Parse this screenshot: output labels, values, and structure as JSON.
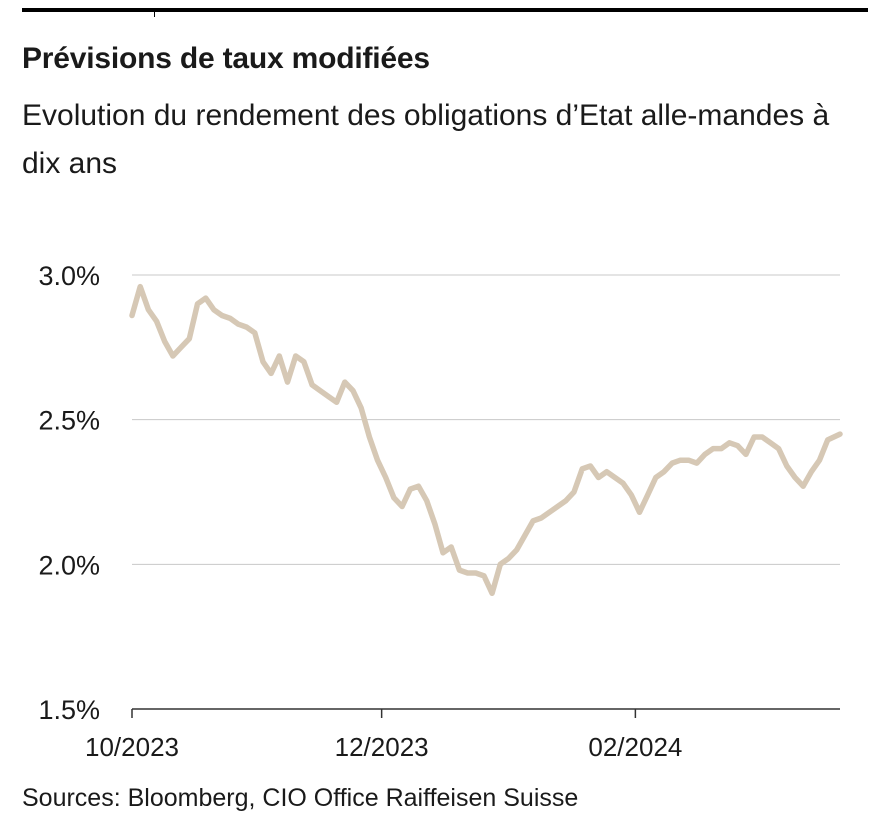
{
  "chart_data": {
    "type": "line",
    "title": "Prévisions de taux modifiées",
    "subtitle": "Evolution du rendement des obligations d’Etat alle-mandes à dix ans",
    "source": "Sources: Bloomberg, CIO Office Raiffeisen Suisse",
    "ylim": [
      1.5,
      3.0
    ],
    "y_ticks": [
      {
        "value": 3.0,
        "label": "3.0%"
      },
      {
        "value": 2.5,
        "label": "2.5%"
      },
      {
        "value": 2.0,
        "label": "2.0%"
      },
      {
        "value": 1.5,
        "label": "1.5%"
      }
    ],
    "x_ticks": [
      {
        "value": "2023-10-01",
        "label": "10/2023"
      },
      {
        "value": "2023-12-01",
        "label": "12/2023"
      },
      {
        "value": "2024-02-01",
        "label": "02/2024"
      }
    ],
    "xlim": [
      "2023-10-01",
      "2024-03-22"
    ],
    "grid": true,
    "line_color": "#d6c8b5",
    "series": [
      {
        "x": [
          "2023-10-01",
          "2023-10-03",
          "2023-10-05",
          "2023-10-07",
          "2023-10-09",
          "2023-10-11",
          "2023-10-13",
          "2023-10-15",
          "2023-10-17",
          "2023-10-19",
          "2023-10-21",
          "2023-10-23",
          "2023-10-25",
          "2023-10-27",
          "2023-10-29",
          "2023-10-31",
          "2023-11-02",
          "2023-11-04",
          "2023-11-06",
          "2023-11-08",
          "2023-11-10",
          "2023-11-12",
          "2023-11-14",
          "2023-11-16",
          "2023-11-18",
          "2023-11-20",
          "2023-11-22",
          "2023-11-24",
          "2023-11-26",
          "2023-11-28",
          "2023-11-30",
          "2023-12-02",
          "2023-12-04",
          "2023-12-06",
          "2023-12-08",
          "2023-12-10",
          "2023-12-12",
          "2023-12-14",
          "2023-12-16",
          "2023-12-18",
          "2023-12-20",
          "2023-12-22",
          "2023-12-24",
          "2023-12-26",
          "2023-12-28",
          "2023-12-30",
          "2024-01-01",
          "2024-01-03",
          "2024-01-05",
          "2024-01-07",
          "2024-01-09",
          "2024-01-11",
          "2024-01-13",
          "2024-01-15",
          "2024-01-17",
          "2024-01-19",
          "2024-01-21",
          "2024-01-23",
          "2024-01-25",
          "2024-01-27",
          "2024-01-29",
          "2024-01-31",
          "2024-02-02",
          "2024-02-04",
          "2024-02-06",
          "2024-02-08",
          "2024-02-10",
          "2024-02-12",
          "2024-02-14",
          "2024-02-16",
          "2024-02-18",
          "2024-02-20",
          "2024-02-22",
          "2024-02-24",
          "2024-02-26",
          "2024-02-28",
          "2024-03-01",
          "2024-03-03",
          "2024-03-05",
          "2024-03-07",
          "2024-03-09",
          "2024-03-11",
          "2024-03-13",
          "2024-03-15",
          "2024-03-17",
          "2024-03-19",
          "2024-03-22"
        ],
        "values": [
          2.86,
          2.96,
          2.88,
          2.84,
          2.77,
          2.72,
          2.75,
          2.78,
          2.9,
          2.92,
          2.88,
          2.86,
          2.85,
          2.83,
          2.82,
          2.8,
          2.7,
          2.66,
          2.72,
          2.63,
          2.72,
          2.7,
          2.62,
          2.6,
          2.58,
          2.56,
          2.63,
          2.6,
          2.54,
          2.44,
          2.36,
          2.3,
          2.23,
          2.2,
          2.26,
          2.27,
          2.22,
          2.14,
          2.04,
          2.06,
          1.98,
          1.97,
          1.97,
          1.96,
          1.9,
          2.0,
          2.02,
          2.05,
          2.1,
          2.15,
          2.16,
          2.18,
          2.2,
          2.22,
          2.25,
          2.33,
          2.34,
          2.3,
          2.32,
          2.3,
          2.28,
          2.24,
          2.18,
          2.24,
          2.3,
          2.32,
          2.35,
          2.36,
          2.36,
          2.35,
          2.38,
          2.4,
          2.4,
          2.42,
          2.41,
          2.38,
          2.44,
          2.44,
          2.42,
          2.4,
          2.34,
          2.3,
          2.27,
          2.32,
          2.36,
          2.43,
          2.45
        ]
      }
    ]
  }
}
